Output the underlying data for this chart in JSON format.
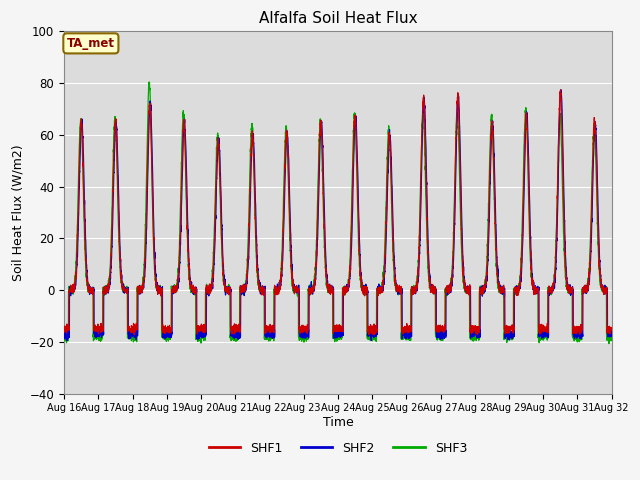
{
  "title": "Alfalfa Soil Heat Flux",
  "ylabel": "Soil Heat Flux (W/m2)",
  "xlabel": "Time",
  "ylim": [
    -40,
    100
  ],
  "yticks": [
    -40,
    -20,
    0,
    20,
    40,
    60,
    80,
    100
  ],
  "start_day": 16,
  "end_day": 31,
  "points_per_day": 288,
  "series": [
    "SHF1",
    "SHF2",
    "SHF3"
  ],
  "colors": [
    "#cc0000",
    "#0000cc",
    "#00aa00"
  ],
  "background_color": "#dcdcdc",
  "plot_bg_color": "#dcdcdc",
  "annotation_text": "TA_met",
  "annotation_bg": "#ffffcc",
  "annotation_border": "#886600",
  "annotation_text_color": "#880000",
  "grid_color": "#ffffff",
  "day_peaks_shf1": [
    65,
    65,
    72,
    65,
    58,
    60,
    61,
    65,
    67,
    60,
    74,
    75,
    65,
    68,
    77,
    65
  ],
  "day_peaks_shf2": [
    65,
    65,
    72,
    65,
    58,
    60,
    61,
    65,
    67,
    60,
    74,
    75,
    65,
    68,
    77,
    65
  ],
  "day_peaks_shf3": [
    66,
    66,
    80,
    68,
    60,
    64,
    63,
    65,
    68,
    62,
    68,
    68,
    66,
    70,
    67,
    63
  ],
  "night_shf1": -15,
  "night_shf2": -17,
  "night_shf3": -18
}
